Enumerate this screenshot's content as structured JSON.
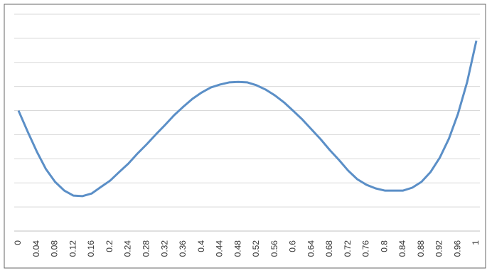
{
  "chart_data": {
    "type": "line",
    "categories": [
      "0",
      null,
      "0.04",
      null,
      "0.08",
      null,
      "0.12",
      null,
      "0.16",
      null,
      "0.2",
      null,
      "0.24",
      null,
      "0.28",
      null,
      "0.32",
      null,
      "0.36",
      null,
      "0.4",
      null,
      "0.44",
      null,
      "0.48",
      null,
      "0.52",
      null,
      "0.56",
      null,
      "0.6",
      null,
      "0.64",
      null,
      "0.68",
      null,
      "0.72",
      null,
      "0.76",
      null,
      "0.8",
      null,
      "0.84",
      null,
      "0.88",
      null,
      "0.92",
      null,
      "0.96",
      null,
      "1"
    ],
    "values": [
      5.0,
      4.13,
      3.3,
      2.57,
      2.04,
      1.68,
      1.47,
      1.45,
      1.56,
      1.83,
      2.09,
      2.45,
      2.8,
      3.22,
      3.6,
      4.01,
      4.4,
      4.81,
      5.16,
      5.49,
      5.75,
      5.96,
      6.08,
      6.17,
      6.19,
      6.17,
      6.05,
      5.87,
      5.63,
      5.34,
      4.99,
      4.63,
      4.22,
      3.81,
      3.36,
      2.95,
      2.51,
      2.15,
      1.92,
      1.77,
      1.68,
      1.68,
      1.68,
      1.8,
      2.04,
      2.45,
      3.04,
      3.83,
      4.87,
      6.19,
      7.9
    ],
    "color": "#5b8fc7",
    "ylim": [
      0,
      9
    ],
    "yticks": [
      0,
      1,
      2,
      3,
      4,
      5,
      6,
      7,
      8,
      9
    ],
    "grid": true
  }
}
